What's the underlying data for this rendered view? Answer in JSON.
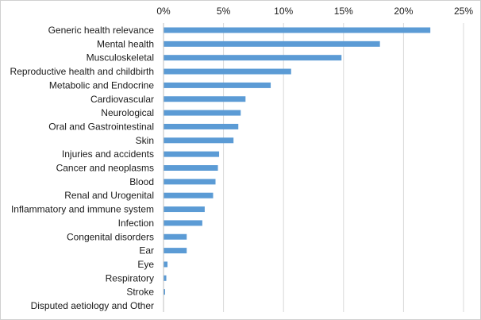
{
  "chart_data": {
    "type": "bar",
    "orientation": "horizontal",
    "categories": [
      "Generic health relevance",
      "Mental health",
      "Musculoskeletal",
      "Reproductive health and childbirth",
      "Metabolic and Endocrine",
      "Cardiovascular",
      "Neurological",
      "Oral and Gastrointestinal",
      "Skin",
      "Injuries and accidents",
      "Cancer and neoplasms",
      "Blood",
      "Renal and Urogenital",
      "Inflammatory and immune system",
      "Infection",
      "Congenital disorders",
      "Ear",
      "Eye",
      "Respiratory",
      "Stroke",
      "Disputed aetiology and Other"
    ],
    "values": [
      22.2,
      18.0,
      14.8,
      10.6,
      8.9,
      6.8,
      6.4,
      6.2,
      5.8,
      4.6,
      4.5,
      4.3,
      4.1,
      3.4,
      3.2,
      1.9,
      1.9,
      0.3,
      0.2,
      0.1,
      0.0
    ],
    "xlim": [
      0,
      25
    ],
    "x_ticks": [
      0,
      5,
      10,
      15,
      20,
      25
    ],
    "x_tick_labels": [
      "0%",
      "5%",
      "10%",
      "15%",
      "20%",
      "25%"
    ],
    "x_axis_position": "top",
    "grid": true,
    "legend": false,
    "bar_color": "#5b9bd5",
    "title": "",
    "xlabel": "",
    "ylabel": ""
  }
}
